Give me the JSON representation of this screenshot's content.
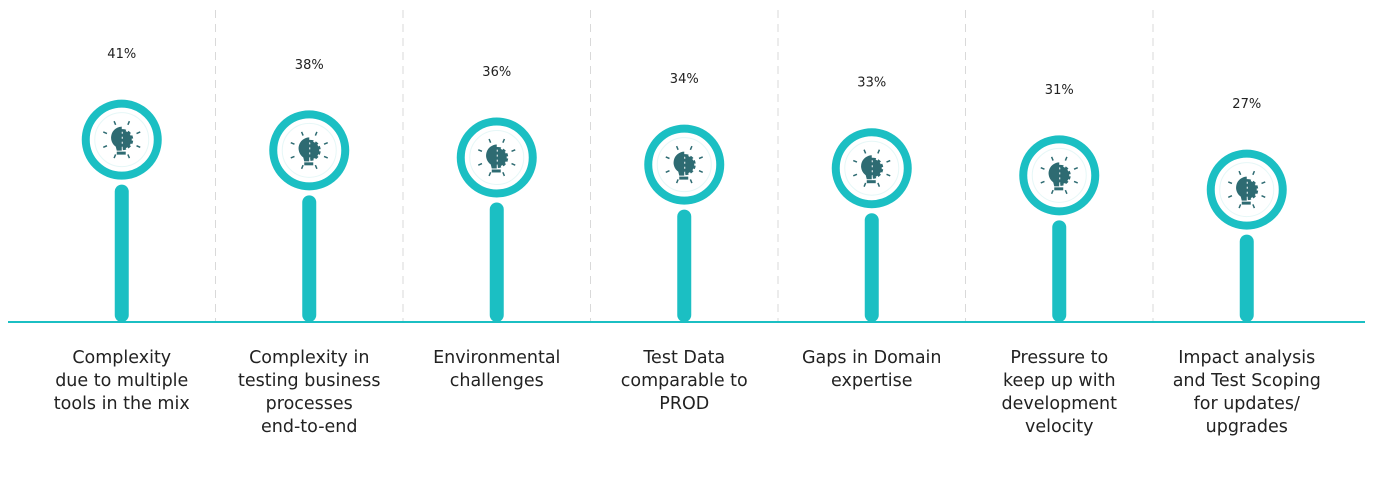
{
  "chart_data": {
    "type": "lollipop",
    "categories": [
      "Complexity\ndue to multiple\ntools in the mix",
      "Complexity in\ntesting business\nprocesses\nend-to-end",
      "Environmental\nchallenges",
      "Test Data\ncomparable to\nPROD",
      "Gaps in Domain\nexpertise",
      "Pressure to\nkeep up with\ndevelopment\nvelocity",
      "Impact analysis\nand Test Scoping\nfor updates/\nupgrades"
    ],
    "values": [
      41,
      38,
      36,
      34,
      33,
      31,
      27
    ],
    "value_labels": [
      "41%",
      "38%",
      "36%",
      "34%",
      "33%",
      "31%",
      "27%"
    ],
    "color": "#1bbfc3"
  }
}
